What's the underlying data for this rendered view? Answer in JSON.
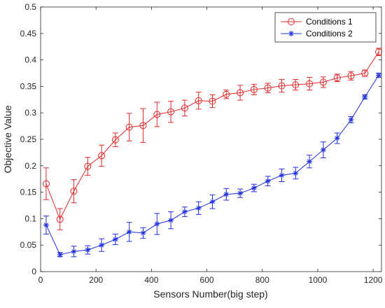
{
  "chart_data": {
    "type": "line",
    "title": "",
    "xlabel": "Sensors Number(big step)",
    "ylabel": "Objective Value",
    "xlim": [
      0,
      1230
    ],
    "ylim": [
      0,
      0.5
    ],
    "xticks": [
      0,
      200,
      400,
      600,
      800,
      1000,
      1200
    ],
    "yticks": [
      0,
      0.05,
      0.1,
      0.15,
      0.2,
      0.25,
      0.3,
      0.35,
      0.4,
      0.45,
      0.5
    ],
    "xtick_labels": [
      "0",
      "200",
      "400",
      "600",
      "800",
      "1000",
      "1200"
    ],
    "ytick_labels": [
      "0",
      "0.05",
      "0.1",
      "0.15",
      "0.2",
      "0.25",
      "0.3",
      "0.35",
      "0.4",
      "0.45",
      "0.5"
    ],
    "grid": false,
    "legend_position": "top-right",
    "x": [
      20,
      70,
      120,
      170,
      220,
      270,
      320,
      370,
      420,
      470,
      520,
      570,
      620,
      670,
      720,
      770,
      820,
      870,
      920,
      970,
      1020,
      1070,
      1120,
      1170,
      1220
    ],
    "series": [
      {
        "name": "Conditions 1",
        "color": "#e32828",
        "marker": "circle",
        "values": [
          0.166,
          0.099,
          0.152,
          0.199,
          0.219,
          0.249,
          0.273,
          0.276,
          0.297,
          0.302,
          0.309,
          0.323,
          0.322,
          0.335,
          0.338,
          0.344,
          0.347,
          0.351,
          0.353,
          0.355,
          0.358,
          0.366,
          0.37,
          0.375,
          0.415
        ],
        "errors": [
          0.03,
          0.02,
          0.022,
          0.017,
          0.02,
          0.013,
          0.026,
          0.032,
          0.023,
          0.02,
          0.015,
          0.016,
          0.012,
          0.008,
          0.014,
          0.01,
          0.009,
          0.012,
          0.01,
          0.012,
          0.01,
          0.007,
          0.008,
          0.006,
          0.007
        ]
      },
      {
        "name": "Conditions 2",
        "color": "#1f2fe0",
        "marker": "asterisk",
        "values": [
          0.088,
          0.032,
          0.038,
          0.041,
          0.05,
          0.061,
          0.075,
          0.073,
          0.09,
          0.097,
          0.113,
          0.12,
          0.132,
          0.146,
          0.148,
          0.158,
          0.171,
          0.182,
          0.186,
          0.208,
          0.23,
          0.252,
          0.287,
          0.33,
          0.371
        ],
        "errors": [
          0.017,
          0.004,
          0.01,
          0.008,
          0.012,
          0.01,
          0.018,
          0.01,
          0.02,
          0.016,
          0.009,
          0.012,
          0.013,
          0.011,
          0.008,
          0.007,
          0.009,
          0.012,
          0.011,
          0.012,
          0.015,
          0.01,
          0.006,
          0.004,
          0.004
        ]
      }
    ]
  }
}
